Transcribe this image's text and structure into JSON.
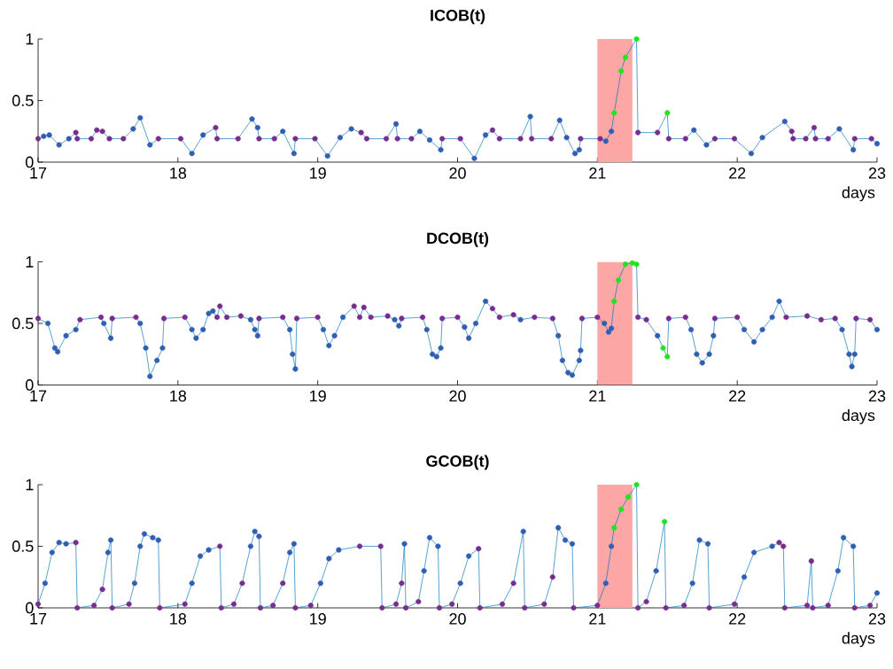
{
  "chart_data": [
    {
      "type": "line",
      "title": "ICOB(t)",
      "xlabel": "days",
      "xlim": [
        17,
        23
      ],
      "ylim": [
        0,
        1
      ],
      "xticks": [
        17,
        18,
        19,
        20,
        21,
        22,
        23
      ],
      "yticks": [
        0,
        0.5,
        1
      ],
      "marker": "circle",
      "bands": [
        {
          "axis": "x",
          "from": 21,
          "to": 21.25,
          "color": "#fca6a6"
        }
      ],
      "series": [
        {
          "color": "#0072bd",
          "x": [
            17.0,
            17.04,
            17.08,
            17.15,
            17.22,
            17.27,
            17.28,
            17.38,
            17.42,
            17.46,
            17.51,
            17.61,
            17.68,
            17.73,
            17.8,
            17.86,
            18.02,
            18.1,
            18.18,
            18.27,
            18.28,
            18.43,
            18.53,
            18.57,
            18.58,
            18.69,
            18.75,
            18.83,
            18.84,
            18.98,
            19.07,
            19.16,
            19.24,
            19.31,
            19.35,
            19.49,
            19.56,
            19.57,
            19.67,
            19.73,
            19.8,
            19.88,
            19.89,
            20.02,
            20.12,
            20.2,
            20.25,
            20.3,
            20.45,
            20.52,
            20.53,
            20.67,
            20.73,
            20.78,
            20.84,
            20.87,
            20.88,
            21.02,
            21.06,
            21.1,
            21.12,
            21.17,
            21.2,
            21.28,
            21.29,
            21.43,
            21.5,
            21.51,
            21.63,
            21.69,
            21.78,
            21.84,
            21.98,
            22.1,
            22.18,
            22.34,
            22.39,
            22.4,
            22.49,
            22.55,
            22.56,
            22.65,
            22.73,
            22.83,
            22.84,
            22.96,
            23.0
          ],
          "values": [
            0.19,
            0.21,
            0.22,
            0.14,
            0.19,
            0.24,
            0.19,
            0.19,
            0.26,
            0.25,
            0.19,
            0.19,
            0.27,
            0.36,
            0.14,
            0.19,
            0.19,
            0.07,
            0.22,
            0.28,
            0.19,
            0.19,
            0.35,
            0.28,
            0.19,
            0.19,
            0.25,
            0.07,
            0.19,
            0.19,
            0.05,
            0.2,
            0.27,
            0.24,
            0.19,
            0.19,
            0.31,
            0.19,
            0.19,
            0.25,
            0.18,
            0.1,
            0.19,
            0.19,
            0.03,
            0.22,
            0.26,
            0.19,
            0.19,
            0.37,
            0.19,
            0.19,
            0.34,
            0.2,
            0.07,
            0.1,
            0.19,
            0.19,
            0.17,
            0.25,
            0.4,
            0.74,
            0.85,
            1.0,
            0.24,
            0.24,
            0.4,
            0.19,
            0.19,
            0.26,
            0.14,
            0.19,
            0.19,
            0.07,
            0.2,
            0.33,
            0.25,
            0.19,
            0.19,
            0.28,
            0.19,
            0.19,
            0.27,
            0.1,
            0.19,
            0.19,
            0.15
          ],
          "colors": [
            "#772d8f",
            "#2f5fb3",
            "#2f5fb3",
            "#2f5fb3",
            "#2f5fb3",
            "#772d8f",
            "#772d8f",
            "#772d8f",
            "#772d8f",
            "#772d8f",
            "#772d8f",
            "#772d8f",
            "#2f5fb3",
            "#2f5fb3",
            "#2f5fb3",
            "#772d8f",
            "#772d8f",
            "#2f5fb3",
            "#2f5fb3",
            "#772d8f",
            "#772d8f",
            "#772d8f",
            "#2f5fb3",
            "#2f5fb3",
            "#772d8f",
            "#772d8f",
            "#2f5fb3",
            "#2f5fb3",
            "#772d8f",
            "#772d8f",
            "#2f5fb3",
            "#2f5fb3",
            "#2f5fb3",
            "#772d8f",
            "#772d8f",
            "#772d8f",
            "#2f5fb3",
            "#772d8f",
            "#772d8f",
            "#2f5fb3",
            "#2f5fb3",
            "#2f5fb3",
            "#772d8f",
            "#772d8f",
            "#2f5fb3",
            "#2f5fb3",
            "#772d8f",
            "#772d8f",
            "#772d8f",
            "#2f5fb3",
            "#772d8f",
            "#772d8f",
            "#2f5fb3",
            "#2f5fb3",
            "#2f5fb3",
            "#2f5fb3",
            "#772d8f",
            "#772d8f",
            "#2f5fb3",
            "#2f5fb3",
            "#1ee61e",
            "#1ee61e",
            "#1ee61e",
            "#1ee61e",
            "#772d8f",
            "#772d8f",
            "#1ee61e",
            "#772d8f",
            "#772d8f",
            "#2f5fb3",
            "#2f5fb3",
            "#772d8f",
            "#772d8f",
            "#2f5fb3",
            "#2f5fb3",
            "#2f5fb3",
            "#772d8f",
            "#772d8f",
            "#772d8f",
            "#772d8f",
            "#772d8f",
            "#772d8f",
            "#2f5fb3",
            "#2f5fb3",
            "#772d8f",
            "#772d8f",
            "#2f5fb3"
          ]
        }
      ]
    },
    {
      "type": "line",
      "title": "DCOB(t)",
      "xlabel": "days",
      "xlim": [
        17,
        23
      ],
      "ylim": [
        0,
        1
      ],
      "xticks": [
        17,
        18,
        19,
        20,
        21,
        22,
        23
      ],
      "yticks": [
        0,
        0.5,
        1
      ],
      "marker": "circle",
      "bands": [
        {
          "axis": "x",
          "from": 21,
          "to": 21.25,
          "color": "#fca6a6"
        }
      ],
      "series": [
        {
          "color": "#0072bd",
          "x": [
            17.0,
            17.07,
            17.12,
            17.14,
            17.2,
            17.27,
            17.3,
            17.45,
            17.47,
            17.52,
            17.53,
            17.7,
            17.73,
            17.77,
            17.8,
            17.85,
            17.89,
            17.9,
            18.05,
            18.1,
            18.13,
            18.18,
            18.22,
            18.25,
            18.28,
            18.3,
            18.35,
            18.45,
            18.52,
            18.55,
            18.57,
            18.58,
            18.75,
            18.8,
            18.82,
            18.84,
            18.85,
            19.0,
            19.04,
            19.08,
            19.12,
            19.18,
            19.26,
            19.3,
            19.33,
            19.38,
            19.5,
            19.55,
            19.58,
            19.6,
            19.75,
            19.78,
            19.82,
            19.85,
            19.88,
            19.89,
            20.0,
            20.05,
            20.08,
            20.13,
            20.2,
            20.25,
            20.3,
            20.4,
            20.45,
            20.55,
            20.68,
            20.72,
            20.75,
            20.79,
            20.82,
            20.87,
            20.88,
            20.89,
            21.0,
            21.05,
            21.08,
            21.1,
            21.12,
            21.15,
            21.2,
            21.25,
            21.28,
            21.29,
            21.35,
            21.43,
            21.47,
            21.5,
            21.51,
            21.63,
            21.67,
            21.71,
            21.75,
            21.8,
            21.83,
            21.84,
            22.0,
            22.05,
            22.12,
            22.18,
            22.25,
            22.3,
            22.35,
            22.5,
            22.6,
            22.7,
            22.75,
            22.8,
            22.82,
            22.84,
            22.85,
            22.95,
            23.0
          ],
          "values": [
            0.54,
            0.5,
            0.3,
            0.27,
            0.4,
            0.45,
            0.53,
            0.55,
            0.5,
            0.38,
            0.54,
            0.55,
            0.5,
            0.3,
            0.07,
            0.2,
            0.3,
            0.54,
            0.55,
            0.45,
            0.38,
            0.45,
            0.58,
            0.6,
            0.55,
            0.64,
            0.55,
            0.56,
            0.53,
            0.45,
            0.4,
            0.54,
            0.55,
            0.45,
            0.25,
            0.13,
            0.54,
            0.55,
            0.45,
            0.32,
            0.4,
            0.55,
            0.64,
            0.55,
            0.63,
            0.55,
            0.56,
            0.53,
            0.48,
            0.54,
            0.55,
            0.45,
            0.25,
            0.23,
            0.3,
            0.54,
            0.55,
            0.47,
            0.38,
            0.5,
            0.68,
            0.62,
            0.55,
            0.57,
            0.53,
            0.55,
            0.54,
            0.4,
            0.2,
            0.1,
            0.08,
            0.2,
            0.28,
            0.54,
            0.55,
            0.5,
            0.43,
            0.46,
            0.68,
            0.85,
            0.98,
            0.99,
            0.98,
            0.55,
            0.53,
            0.4,
            0.3,
            0.23,
            0.54,
            0.55,
            0.45,
            0.25,
            0.18,
            0.25,
            0.4,
            0.54,
            0.55,
            0.45,
            0.35,
            0.45,
            0.55,
            0.68,
            0.55,
            0.56,
            0.53,
            0.54,
            0.45,
            0.25,
            0.15,
            0.25,
            0.54,
            0.53,
            0.45
          ],
          "colors": [
            "#772d8f",
            "#2f5fb3",
            "#2f5fb3",
            "#2f5fb3",
            "#2f5fb3",
            "#2f5fb3",
            "#772d8f",
            "#772d8f",
            "#2f5fb3",
            "#2f5fb3",
            "#772d8f",
            "#772d8f",
            "#2f5fb3",
            "#2f5fb3",
            "#2f5fb3",
            "#2f5fb3",
            "#2f5fb3",
            "#772d8f",
            "#772d8f",
            "#2f5fb3",
            "#2f5fb3",
            "#2f5fb3",
            "#2f5fb3",
            "#2f5fb3",
            "#772d8f",
            "#772d8f",
            "#772d8f",
            "#772d8f",
            "#2f5fb3",
            "#2f5fb3",
            "#2f5fb3",
            "#772d8f",
            "#772d8f",
            "#2f5fb3",
            "#2f5fb3",
            "#2f5fb3",
            "#772d8f",
            "#772d8f",
            "#2f5fb3",
            "#2f5fb3",
            "#2f5fb3",
            "#2f5fb3",
            "#772d8f",
            "#772d8f",
            "#772d8f",
            "#772d8f",
            "#772d8f",
            "#2f5fb3",
            "#2f5fb3",
            "#772d8f",
            "#772d8f",
            "#2f5fb3",
            "#2f5fb3",
            "#2f5fb3",
            "#2f5fb3",
            "#772d8f",
            "#772d8f",
            "#2f5fb3",
            "#2f5fb3",
            "#2f5fb3",
            "#2f5fb3",
            "#772d8f",
            "#772d8f",
            "#772d8f",
            "#2f5fb3",
            "#772d8f",
            "#772d8f",
            "#2f5fb3",
            "#2f5fb3",
            "#2f5fb3",
            "#2f5fb3",
            "#2f5fb3",
            "#2f5fb3",
            "#772d8f",
            "#772d8f",
            "#2f5fb3",
            "#2f5fb3",
            "#2f5fb3",
            "#1ee61e",
            "#1ee61e",
            "#1ee61e",
            "#1ee61e",
            "#1ee61e",
            "#772d8f",
            "#772d8f",
            "#2f5fb3",
            "#1ee61e",
            "#1ee61e",
            "#772d8f",
            "#772d8f",
            "#2f5fb3",
            "#2f5fb3",
            "#2f5fb3",
            "#2f5fb3",
            "#2f5fb3",
            "#772d8f",
            "#772d8f",
            "#2f5fb3",
            "#2f5fb3",
            "#2f5fb3",
            "#2f5fb3",
            "#2f5fb3",
            "#772d8f",
            "#772d8f",
            "#772d8f",
            "#772d8f",
            "#2f5fb3",
            "#2f5fb3",
            "#2f5fb3",
            "#2f5fb3",
            "#772d8f",
            "#772d8f",
            "#2f5fb3"
          ]
        }
      ]
    },
    {
      "type": "line",
      "title": "GCOB(t)",
      "xlabel": "days",
      "xlim": [
        17,
        23
      ],
      "ylim": [
        0,
        1
      ],
      "xticks": [
        17,
        18,
        19,
        20,
        21,
        22,
        23
      ],
      "yticks": [
        0,
        0.5,
        1
      ],
      "marker": "circle",
      "bands": [
        {
          "axis": "x",
          "from": 21,
          "to": 21.25,
          "color": "#fca6a6"
        }
      ],
      "series": [
        {
          "color": "#0072bd",
          "x": [
            17.0,
            17.05,
            17.1,
            17.15,
            17.2,
            17.27,
            17.28,
            17.4,
            17.46,
            17.5,
            17.52,
            17.53,
            17.65,
            17.69,
            17.73,
            17.76,
            17.82,
            17.86,
            17.87,
            18.05,
            18.1,
            18.16,
            18.22,
            18.3,
            18.31,
            18.4,
            18.46,
            18.52,
            18.55,
            18.58,
            18.59,
            18.68,
            18.75,
            18.8,
            18.83,
            18.84,
            18.95,
            19.02,
            19.08,
            19.15,
            19.3,
            19.45,
            19.46,
            19.56,
            19.6,
            19.62,
            19.63,
            19.72,
            19.76,
            19.8,
            19.86,
            19.87,
            19.96,
            20.02,
            20.08,
            20.15,
            20.16,
            20.32,
            20.4,
            20.47,
            20.48,
            20.62,
            20.68,
            20.72,
            20.77,
            20.82,
            20.83,
            21.0,
            21.06,
            21.1,
            21.12,
            21.17,
            21.22,
            21.28,
            21.29,
            21.35,
            21.42,
            21.48,
            21.49,
            21.62,
            21.68,
            21.73,
            21.79,
            21.8,
            21.98,
            22.05,
            22.12,
            22.25,
            22.3,
            22.33,
            22.34,
            22.5,
            22.53,
            22.54,
            22.65,
            22.72,
            22.76,
            22.83,
            22.84,
            22.95,
            23.0
          ],
          "values": [
            0.03,
            0.2,
            0.45,
            0.53,
            0.52,
            0.53,
            0,
            0.02,
            0.15,
            0.45,
            0.55,
            0,
            0.03,
            0.2,
            0.5,
            0.6,
            0.57,
            0.55,
            0,
            0.03,
            0.2,
            0.42,
            0.47,
            0.5,
            0,
            0.03,
            0.2,
            0.5,
            0.62,
            0.58,
            0,
            0.02,
            0.2,
            0.45,
            0.52,
            0,
            0.02,
            0.2,
            0.4,
            0.47,
            0.5,
            0.5,
            0,
            0.03,
            0.2,
            0.52,
            0,
            0.05,
            0.3,
            0.57,
            0.5,
            0,
            0.03,
            0.2,
            0.42,
            0.48,
            0,
            0.03,
            0.2,
            0.62,
            0,
            0.03,
            0.25,
            0.65,
            0.55,
            0.52,
            0,
            0.02,
            0.2,
            0.5,
            0.65,
            0.8,
            0.9,
            1.0,
            0,
            0.05,
            0.3,
            0.7,
            0,
            0.02,
            0.2,
            0.55,
            0.52,
            0,
            0.03,
            0.25,
            0.45,
            0.5,
            0.53,
            0.5,
            0,
            0.02,
            0.38,
            0,
            0.02,
            0.3,
            0.57,
            0.5,
            0,
            0.02,
            0.12
          ],
          "colors": [
            "#772d8f",
            "#2f5fb3",
            "#2f5fb3",
            "#2f5fb3",
            "#2f5fb3",
            "#772d8f",
            "#772d8f",
            "#772d8f",
            "#772d8f",
            "#2f5fb3",
            "#2f5fb3",
            "#772d8f",
            "#772d8f",
            "#2f5fb3",
            "#2f5fb3",
            "#2f5fb3",
            "#2f5fb3",
            "#2f5fb3",
            "#772d8f",
            "#772d8f",
            "#2f5fb3",
            "#2f5fb3",
            "#2f5fb3",
            "#772d8f",
            "#772d8f",
            "#772d8f",
            "#772d8f",
            "#2f5fb3",
            "#2f5fb3",
            "#2f5fb3",
            "#772d8f",
            "#772d8f",
            "#772d8f",
            "#2f5fb3",
            "#2f5fb3",
            "#772d8f",
            "#772d8f",
            "#2f5fb3",
            "#2f5fb3",
            "#2f5fb3",
            "#772d8f",
            "#772d8f",
            "#772d8f",
            "#772d8f",
            "#772d8f",
            "#2f5fb3",
            "#772d8f",
            "#772d8f",
            "#2f5fb3",
            "#2f5fb3",
            "#2f5fb3",
            "#772d8f",
            "#772d8f",
            "#2f5fb3",
            "#2f5fb3",
            "#772d8f",
            "#772d8f",
            "#772d8f",
            "#772d8f",
            "#2f5fb3",
            "#772d8f",
            "#772d8f",
            "#772d8f",
            "#2f5fb3",
            "#2f5fb3",
            "#2f5fb3",
            "#772d8f",
            "#772d8f",
            "#2f5fb3",
            "#2f5fb3",
            "#1ee61e",
            "#1ee61e",
            "#1ee61e",
            "#1ee61e",
            "#772d8f",
            "#772d8f",
            "#2f5fb3",
            "#1ee61e",
            "#772d8f",
            "#772d8f",
            "#2f5fb3",
            "#2f5fb3",
            "#2f5fb3",
            "#772d8f",
            "#772d8f",
            "#2f5fb3",
            "#2f5fb3",
            "#2f5fb3",
            "#772d8f",
            "#772d8f",
            "#772d8f",
            "#772d8f",
            "#772d8f",
            "#772d8f",
            "#772d8f",
            "#2f5fb3",
            "#2f5fb3",
            "#2f5fb3",
            "#772d8f",
            "#772d8f",
            "#2f5fb3"
          ]
        }
      ]
    }
  ]
}
